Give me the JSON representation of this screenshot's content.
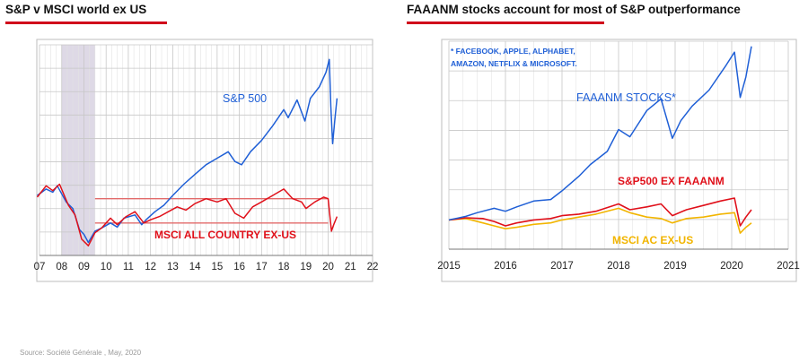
{
  "source": "Source: Société Générale , May, 2020",
  "chart_data": [
    {
      "type": "line",
      "title": "S&P v MSCI world ex US",
      "xlabel": "",
      "ylabel": "",
      "x_ticks": [
        "07",
        "08",
        "09",
        "10",
        "11",
        "12",
        "13",
        "14",
        "15",
        "16",
        "17",
        "18",
        "19",
        "20",
        "21",
        "22"
      ],
      "xlim": [
        2007,
        2022
      ],
      "grid": true,
      "shaded_region": {
        "x": [
          2008.0,
          2009.5
        ],
        "color": "#ded9e6"
      },
      "reference_lines": [
        {
          "y": 100,
          "x": [
            2009.5,
            2020.0
          ],
          "color": "#e26a6a"
        },
        {
          "y": 70,
          "x": [
            2009.5,
            2020.0
          ],
          "color": "#e26a6a"
        }
      ],
      "series": [
        {
          "name": "S&P 500",
          "color": "#1f5fd6",
          "x": [
            2006.9,
            2007.3,
            2007.6,
            2007.8,
            2008.2,
            2008.5,
            2008.8,
            2009.0,
            2009.2,
            2009.5,
            2009.8,
            2010.2,
            2010.5,
            2010.8,
            2011.3,
            2011.6,
            2011.8,
            2012.2,
            2012.6,
            2013.0,
            2013.5,
            2014.0,
            2014.5,
            2015.0,
            2015.5,
            2015.8,
            2016.1,
            2016.5,
            2017.0,
            2017.5,
            2018.0,
            2018.2,
            2018.6,
            2018.95,
            2019.2,
            2019.6,
            2019.9,
            2020.05,
            2020.12,
            2020.2,
            2020.3,
            2020.4
          ],
          "values": [
            104,
            112,
            108,
            116,
            96,
            88,
            62,
            56,
            46,
            60,
            64,
            70,
            65,
            76,
            80,
            68,
            74,
            84,
            92,
            104,
            118,
            130,
            142,
            150,
            158,
            146,
            142,
            158,
            172,
            190,
            210,
            200,
            222,
            196,
            224,
            238,
            256,
            272,
            214,
            168,
            198,
            224
          ]
        },
        {
          "name": "MSCI ALL COUNTRY EX-US",
          "color": "#e0101a",
          "x": [
            2006.9,
            2007.3,
            2007.6,
            2007.9,
            2008.3,
            2008.6,
            2008.9,
            2009.2,
            2009.5,
            2009.8,
            2010.2,
            2010.5,
            2010.9,
            2011.3,
            2011.7,
            2012.0,
            2012.4,
            2012.8,
            2013.2,
            2013.6,
            2014.0,
            2014.5,
            2015.0,
            2015.4,
            2015.8,
            2016.2,
            2016.6,
            2017.0,
            2017.5,
            2018.0,
            2018.4,
            2018.8,
            2019.0,
            2019.4,
            2019.8,
            2020.0,
            2020.15,
            2020.25,
            2020.4
          ],
          "values": [
            102,
            116,
            110,
            118,
            92,
            80,
            50,
            42,
            58,
            64,
            76,
            68,
            78,
            84,
            70,
            74,
            78,
            84,
            90,
            86,
            94,
            100,
            96,
            100,
            82,
            76,
            90,
            96,
            104,
            112,
            100,
            96,
            88,
            96,
            102,
            100,
            60,
            68,
            78
          ]
        }
      ]
    },
    {
      "type": "line",
      "title": "FAAANM stocks account for most of S&P outperformance",
      "xlabel": "",
      "ylabel": "",
      "x_ticks": [
        "2015",
        "2016",
        "2017",
        "2018",
        "2019",
        "2020",
        "2021"
      ],
      "xlim": [
        2015,
        2021
      ],
      "grid": true,
      "annotation": "* FACEBOOK, APPLE, ALPHABET, AMAZON, NETFLIX & MICROSOFT.",
      "series": [
        {
          "name": "FAAANM STOCKS*",
          "color": "#1f5fd6",
          "x": [
            2015.0,
            2015.3,
            2015.5,
            2015.8,
            2016.0,
            2016.2,
            2016.5,
            2016.8,
            2017.0,
            2017.3,
            2017.5,
            2017.8,
            2018.0,
            2018.2,
            2018.5,
            2018.75,
            2018.95,
            2019.1,
            2019.3,
            2019.6,
            2019.9,
            2020.05,
            2020.15,
            2020.25,
            2020.35
          ],
          "values": [
            100,
            105,
            110,
            116,
            112,
            118,
            126,
            128,
            140,
            160,
            176,
            194,
            224,
            214,
            250,
            266,
            212,
            236,
            256,
            278,
            312,
            330,
            268,
            296,
            338
          ]
        },
        {
          "name": "S&P500 EX FAAANM",
          "color": "#e0101a",
          "x": [
            2015.0,
            2015.3,
            2015.6,
            2015.8,
            2016.0,
            2016.2,
            2016.5,
            2016.8,
            2017.0,
            2017.3,
            2017.6,
            2018.0,
            2018.2,
            2018.5,
            2018.75,
            2018.95,
            2019.2,
            2019.5,
            2019.8,
            2020.05,
            2020.15,
            2020.25,
            2020.35
          ],
          "values": [
            100,
            103,
            102,
            98,
            92,
            96,
            100,
            102,
            106,
            108,
            112,
            122,
            114,
            118,
            122,
            106,
            114,
            120,
            126,
            130,
            92,
            104,
            114
          ]
        },
        {
          "name": "MSCI AC EX-US",
          "color": "#f2b500",
          "x": [
            2015.0,
            2015.3,
            2015.6,
            2015.8,
            2016.0,
            2016.2,
            2016.5,
            2016.8,
            2017.0,
            2017.3,
            2017.6,
            2018.0,
            2018.2,
            2018.5,
            2018.75,
            2018.95,
            2019.2,
            2019.5,
            2019.8,
            2020.05,
            2020.15,
            2020.25,
            2020.35
          ],
          "values": [
            100,
            102,
            96,
            92,
            88,
            90,
            94,
            96,
            100,
            104,
            108,
            116,
            110,
            104,
            102,
            96,
            102,
            104,
            108,
            110,
            82,
            90,
            96
          ]
        }
      ]
    }
  ]
}
